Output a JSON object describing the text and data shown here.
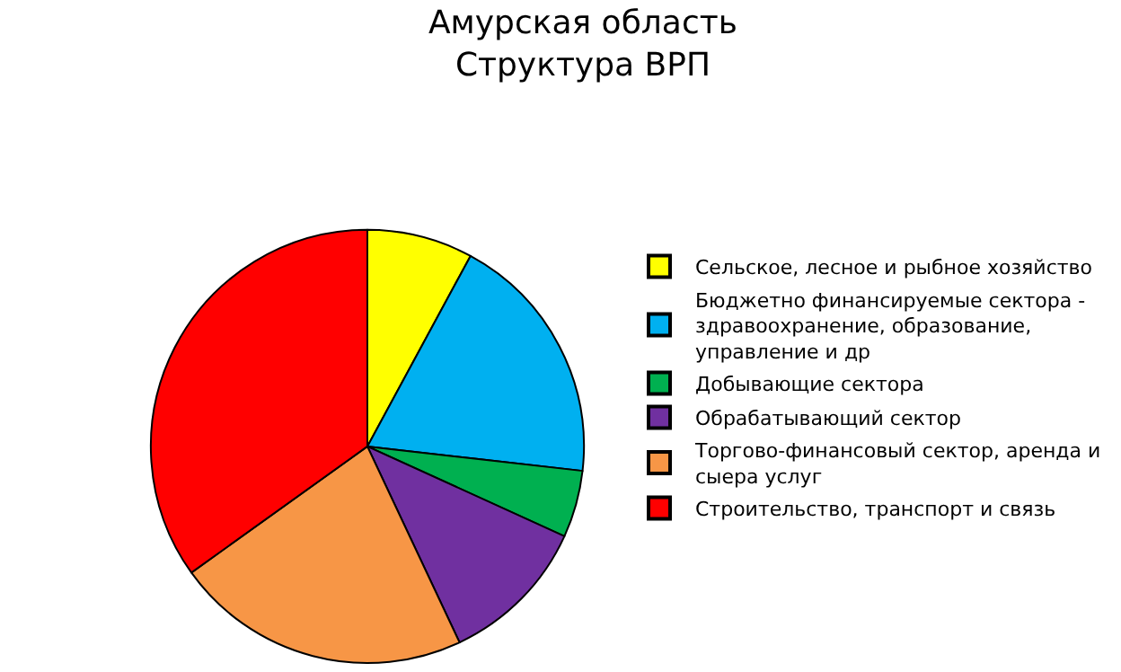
{
  "chart_data": {
    "type": "pie",
    "title": "Амурская область\nСтруктура ВРП",
    "categories": [
      "Сельское, лесное и рыбное хозяйство",
      "Бюджетно финансируемые сектора - здравоохранение, образование, управление и др",
      "Добывающие сектора",
      "Обрабатывающий сектор",
      "Торгово-финансовый сектор, аренда и сыера услуг",
      "Строительство, транспорт и связь"
    ],
    "values": [
      7.9,
      18.9,
      5.0,
      11.2,
      22.1,
      34.9
    ],
    "colors": [
      "#ffff00",
      "#00b0f0",
      "#00b050",
      "#7030a0",
      "#f79646",
      "#ff0000"
    ],
    "legend": "right"
  }
}
